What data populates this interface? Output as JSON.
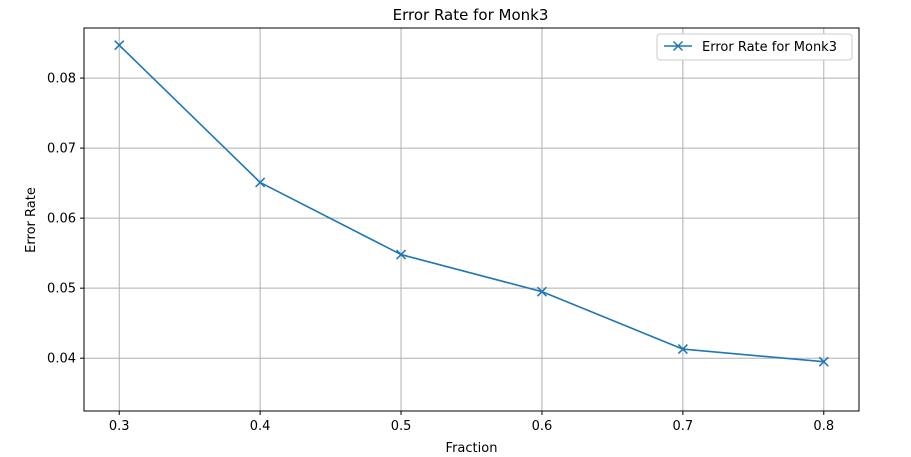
{
  "chart_data": {
    "type": "line",
    "title": "Error Rate for Monk3",
    "xlabel": "Fraction",
    "ylabel": "Error Rate",
    "x": [
      0.3,
      0.4,
      0.5,
      0.6,
      0.7,
      0.8
    ],
    "series": [
      {
        "name": "Error Rate for Monk3",
        "values": [
          0.0847,
          0.0651,
          0.0548,
          0.0495,
          0.0413,
          0.0395
        ],
        "color": "#1f77b4",
        "marker": "x"
      }
    ],
    "xticks": [
      "0.3",
      "0.4",
      "0.5",
      "0.6",
      "0.7",
      "0.8"
    ],
    "yticks": [
      "0.04",
      "0.05",
      "0.06",
      "0.07",
      "0.08"
    ],
    "xlim": [
      0.275,
      0.825
    ],
    "ylim": [
      0.03246,
      0.08715
    ],
    "grid": true,
    "legend_position": "top-right"
  }
}
